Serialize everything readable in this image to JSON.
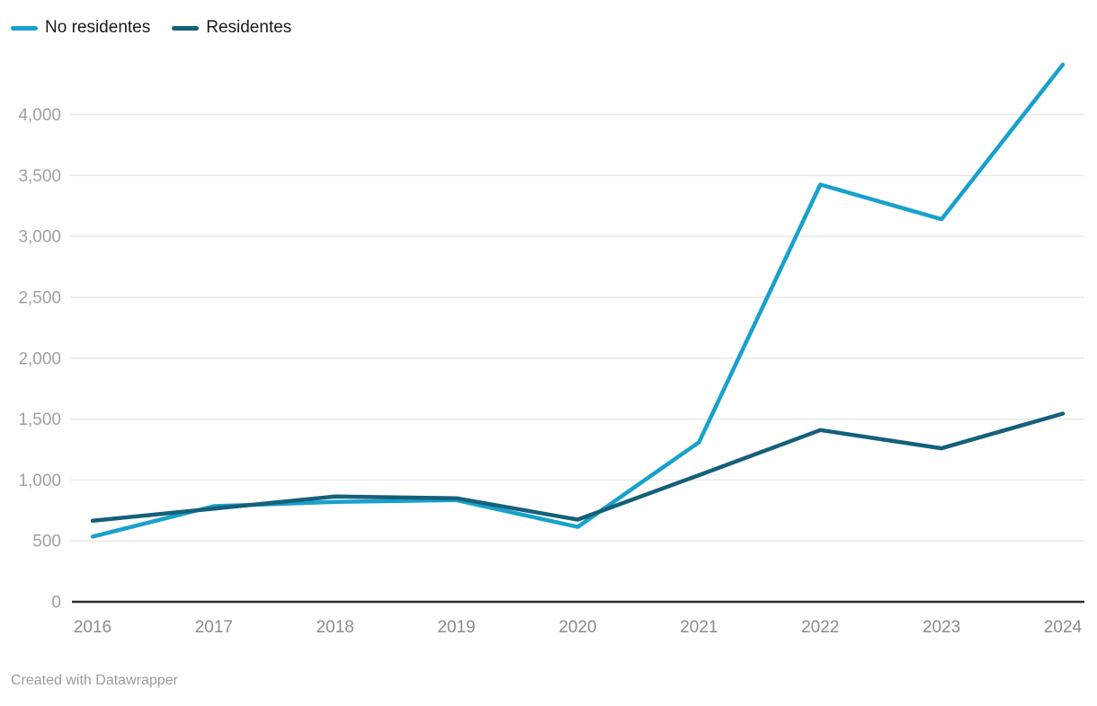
{
  "legend": {
    "items": [
      {
        "label": "No residentes",
        "color": "#18a1cd"
      },
      {
        "label": "Residentes",
        "color": "#15607a"
      }
    ]
  },
  "footer": {
    "credit": "Created with Datawrapper"
  },
  "colors": {
    "background": "#ffffff",
    "grid": "#e8e8e8",
    "axis": "#2b2b2b",
    "y_tick_label": "#a0a0a0",
    "x_tick_label": "#8c8c8c",
    "legend_text": "#1a1a1a",
    "credit_text": "#9b9b9b",
    "series_no_residentes": "#18a1cd",
    "series_residentes": "#15607a"
  },
  "chart_data": {
    "type": "line",
    "title": "",
    "xlabel": "",
    "ylabel": "",
    "x": [
      "2016",
      "2017",
      "2018",
      "2019",
      "2020",
      "2021",
      "2022",
      "2023",
      "2024"
    ],
    "series": [
      {
        "name": "No residentes",
        "color": "#18a1cd",
        "values": [
          535,
          785,
          820,
          835,
          615,
          1310,
          3425,
          3140,
          4410
        ]
      },
      {
        "name": "Residentes",
        "color": "#15607a",
        "values": [
          665,
          765,
          865,
          850,
          675,
          1040,
          1410,
          1260,
          1545
        ]
      }
    ],
    "ylim": [
      0,
      4500
    ],
    "yticks": [
      {
        "value": 0,
        "label": "0"
      },
      {
        "value": 500,
        "label": "500"
      },
      {
        "value": 1000,
        "label": "1,000"
      },
      {
        "value": 1500,
        "label": "1,500"
      },
      {
        "value": 2000,
        "label": "2,000"
      },
      {
        "value": 2500,
        "label": "2,500"
      },
      {
        "value": 3000,
        "label": "3,000"
      },
      {
        "value": 3500,
        "label": "3,500"
      },
      {
        "value": 4000,
        "label": "4,000"
      }
    ],
    "grid": true,
    "legend_position": "top-left"
  }
}
